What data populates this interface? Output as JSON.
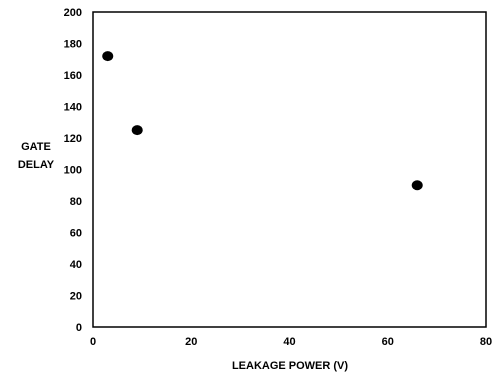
{
  "chart_data": {
    "type": "scatter",
    "title": "",
    "xlabel": "LEAKAGE POWER (V)",
    "ylabel_lines": [
      "GATE",
      "DELAY"
    ],
    "xlim": [
      0,
      80
    ],
    "ylim": [
      0,
      200
    ],
    "xticks": [
      0,
      20,
      40,
      60,
      80
    ],
    "yticks": [
      0,
      20,
      40,
      60,
      80,
      100,
      120,
      140,
      160,
      180,
      200
    ],
    "grid": false,
    "legend": "none",
    "series": [
      {
        "points": [
          {
            "x": 3,
            "y": 172
          },
          {
            "x": 9,
            "y": 125
          },
          {
            "x": 66,
            "y": 90
          }
        ]
      }
    ],
    "colors": {
      "marker": "#000000",
      "axis": "#000000"
    }
  }
}
